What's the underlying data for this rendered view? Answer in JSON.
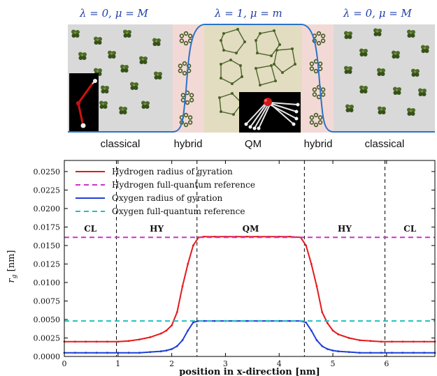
{
  "top_panel": {
    "lambda_labels": [
      "λ = 0,  μ = M",
      "λ = 1,  μ = m",
      "λ = 0,  μ = M"
    ],
    "region_labels": [
      "classical",
      "hybrid",
      "QM",
      "hybrid",
      "classical"
    ],
    "colors": {
      "classical_bg": "#d9d9d9",
      "hybrid_bg": "#f3d9d6",
      "qm_bg": "#e2dcc1",
      "lambda_curve": "#2a73c8",
      "molecule": "#3f5a1e",
      "inset_bg": "#000000"
    }
  },
  "chart_data": {
    "type": "line",
    "xlabel": "position in x-direction [nm]",
    "ylabel": "r_g [nm]",
    "xlim": [
      0,
      6.9
    ],
    "ylim": [
      0,
      0.0265
    ],
    "x_ticks": [
      "0",
      "1",
      "2",
      "3",
      "4",
      "5",
      "6"
    ],
    "y_ticks": [
      "0.0000",
      "0.0025",
      "0.0050",
      "0.0075",
      "0.0100",
      "0.0125",
      "0.0150",
      "0.0175",
      "0.0200",
      "0.0225",
      "0.0250"
    ],
    "legend_placement": "top-left",
    "grid": false,
    "region_labels": [
      "CL",
      "HY",
      "QM",
      "HY",
      "CL"
    ],
    "region_boundaries": [
      0.97,
      2.47,
      4.47,
      5.97
    ],
    "series": [
      {
        "name": "Hydrogen radius of gyration",
        "style": "solid",
        "color": "#e31a1c",
        "x": [
          0,
          0.2,
          0.4,
          0.6,
          0.8,
          1.0,
          1.2,
          1.4,
          1.6,
          1.8,
          1.9,
          2.0,
          2.1,
          2.2,
          2.3,
          2.4,
          2.5,
          2.6,
          2.8,
          3.0,
          3.2,
          3.4,
          3.6,
          3.8,
          4.0,
          4.2,
          4.4,
          4.5,
          4.6,
          4.7,
          4.8,
          4.9,
          5.0,
          5.1,
          5.3,
          5.5,
          5.7,
          5.9,
          6.1,
          6.3,
          6.5,
          6.7,
          6.9
        ],
        "y": [
          0.002,
          0.002,
          0.002,
          0.002,
          0.002,
          0.002,
          0.0021,
          0.0023,
          0.0026,
          0.0031,
          0.0035,
          0.0042,
          0.006,
          0.0095,
          0.0125,
          0.015,
          0.0161,
          0.0162,
          0.0162,
          0.0162,
          0.0162,
          0.0162,
          0.0162,
          0.0162,
          0.0162,
          0.0162,
          0.0161,
          0.015,
          0.0125,
          0.0095,
          0.006,
          0.0045,
          0.0035,
          0.003,
          0.0025,
          0.0022,
          0.0021,
          0.002,
          0.002,
          0.002,
          0.002,
          0.002,
          0.002
        ]
      },
      {
        "name": "Hydrogen full-quantum reference",
        "style": "dashed",
        "color": "#cc33cc",
        "x": [
          0,
          6.9
        ],
        "y": [
          0.0161,
          0.0161
        ]
      },
      {
        "name": "Oxygen radius of gyration",
        "style": "solid",
        "color": "#1f3fd6",
        "x": [
          0,
          0.2,
          0.4,
          0.6,
          0.8,
          1.0,
          1.2,
          1.4,
          1.6,
          1.8,
          1.9,
          2.0,
          2.1,
          2.2,
          2.3,
          2.4,
          2.5,
          2.6,
          2.8,
          3.0,
          3.2,
          3.4,
          3.6,
          3.8,
          4.0,
          4.2,
          4.4,
          4.5,
          4.6,
          4.7,
          4.8,
          4.9,
          5.0,
          5.1,
          5.3,
          5.5,
          5.7,
          5.9,
          6.1,
          6.3,
          6.5,
          6.7,
          6.9
        ],
        "y": [
          0.0005,
          0.0005,
          0.0005,
          0.0005,
          0.0005,
          0.0005,
          0.0005,
          0.0005,
          0.0006,
          0.0007,
          0.0008,
          0.001,
          0.0014,
          0.0022,
          0.0035,
          0.0046,
          0.0048,
          0.0048,
          0.0048,
          0.0048,
          0.0048,
          0.0048,
          0.0048,
          0.0048,
          0.0048,
          0.0048,
          0.0048,
          0.0046,
          0.0035,
          0.0022,
          0.0014,
          0.001,
          0.0008,
          0.0007,
          0.0006,
          0.0005,
          0.0005,
          0.0005,
          0.0005,
          0.0005,
          0.0005,
          0.0005,
          0.0005
        ]
      },
      {
        "name": "Oxygen full-quantum reference",
        "style": "dashed",
        "color": "#20c0c0",
        "x": [
          0,
          6.9
        ],
        "y": [
          0.0048,
          0.0048
        ]
      }
    ]
  }
}
